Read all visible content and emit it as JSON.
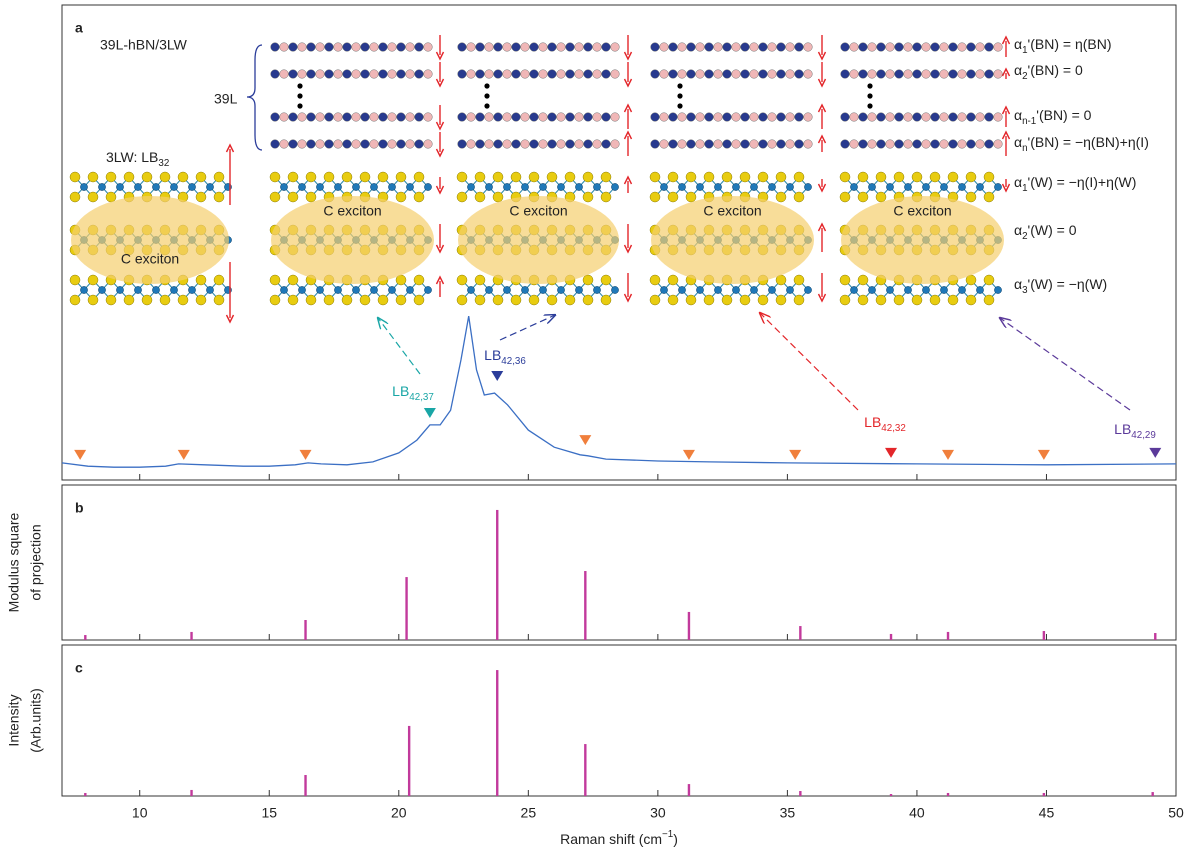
{
  "chart_data": [
    {
      "type": "line",
      "label": "a",
      "color": "#3b6fc4",
      "xlim": [
        7,
        50
      ],
      "ylim": [
        0,
        1
      ],
      "x": [
        7,
        8,
        9,
        10,
        11,
        11.5,
        12.5,
        14,
        15,
        16,
        16.5,
        17,
        18,
        19,
        20,
        20.7,
        21.2,
        21.6,
        22,
        22.4,
        22.7,
        23,
        23.3,
        23.7,
        24.2,
        25,
        26,
        27,
        27.3,
        28,
        30,
        32,
        35,
        40,
        45,
        50
      ],
      "values": [
        0.036,
        0.029,
        0.027,
        0.027,
        0.029,
        0.034,
        0.032,
        0.029,
        0.029,
        0.032,
        0.036,
        0.034,
        0.032,
        0.038,
        0.057,
        0.084,
        0.116,
        0.116,
        0.147,
        0.253,
        0.345,
        0.232,
        0.179,
        0.183,
        0.158,
        0.105,
        0.069,
        0.053,
        0.051,
        0.044,
        0.04,
        0.038,
        0.036,
        0.034,
        0.032,
        0.034
      ],
      "markers": [
        {
          "x": 7.7,
          "y": 0.053,
          "color": "#f07f3c"
        },
        {
          "x": 11.7,
          "y": 0.053,
          "color": "#f07f3c"
        },
        {
          "x": 16.4,
          "y": 0.053,
          "color": "#f07f3c"
        },
        {
          "x": 21.2,
          "y": 0.141,
          "color": "#19a6a6"
        },
        {
          "x": 23.8,
          "y": 0.219,
          "color": "#2b3d9a"
        },
        {
          "x": 27.2,
          "y": 0.084,
          "color": "#f07f3c"
        },
        {
          "x": 31.2,
          "y": 0.053,
          "color": "#f07f3c"
        },
        {
          "x": 35.3,
          "y": 0.053,
          "color": "#f07f3c"
        },
        {
          "x": 39.0,
          "y": 0.057,
          "color": "#e3262a"
        },
        {
          "x": 41.2,
          "y": 0.053,
          "color": "#f07f3c"
        },
        {
          "x": 44.9,
          "y": 0.053,
          "color": "#f07f3c"
        },
        {
          "x": 49.2,
          "y": 0.057,
          "color": "#5b3a9a"
        }
      ],
      "peak_labels": [
        {
          "text": [
            "LB",
            {
              "sub": "42,37"
            }
          ],
          "color": "#19a6a6"
        },
        {
          "text": [
            "LB",
            {
              "sub": "42,36"
            }
          ],
          "color": "#2b3d9a"
        },
        {
          "text": [
            "LB",
            {
              "sub": "42,32"
            }
          ],
          "color": "#e3262a"
        },
        {
          "text": [
            "LB",
            {
              "sub": "42,29"
            }
          ],
          "color": "#5b3a9a"
        }
      ]
    },
    {
      "type": "bar",
      "label": "b",
      "ylabel": [
        "Modulus square",
        "of projection"
      ],
      "color": "#c23a9c",
      "xlim": [
        7,
        50
      ],
      "ylim": [
        0,
        1
      ],
      "x": [
        7.9,
        12.0,
        16.4,
        20.3,
        23.8,
        27.2,
        31.2,
        35.5,
        39.0,
        41.2,
        44.9,
        49.2
      ],
      "values": [
        0.032,
        0.052,
        0.129,
        0.406,
        0.839,
        0.445,
        0.181,
        0.09,
        0.039,
        0.052,
        0.058,
        0.045
      ]
    },
    {
      "type": "bar",
      "label": "c",
      "ylabel": [
        "Intensity",
        "(Arb.units)"
      ],
      "color": "#c23a9c",
      "xlim": [
        7,
        50
      ],
      "ylim": [
        0,
        1
      ],
      "xlabel": [
        "Raman shift (cm",
        {
          "sup": "−1"
        },
        ")"
      ],
      "xticks": [
        10,
        15,
        20,
        25,
        30,
        35,
        40,
        45,
        50
      ],
      "x": [
        7.9,
        12.0,
        16.4,
        20.4,
        23.8,
        27.2,
        31.2,
        35.5,
        39.0,
        41.2,
        44.9,
        49.1
      ],
      "values": [
        0.02,
        0.04,
        0.139,
        0.464,
        0.834,
        0.344,
        0.079,
        0.033,
        0.013,
        0.02,
        0.02,
        0.026
      ]
    }
  ],
  "schematic": {
    "title": "39L-hBN/3LW",
    "stack_label": "39L",
    "column_label": [
      "3LW: LB",
      {
        "sub": "32"
      }
    ],
    "exciton_labels": [
      "C exciton",
      "C exciton",
      "C exciton",
      "C exciton",
      "C exciton"
    ],
    "layer_labels": [
      [
        "α",
        {
          "sub": "1"
        },
        "'(BN) = η(BN)"
      ],
      [
        "α",
        {
          "sub": "2"
        },
        "'(BN) = 0"
      ],
      [
        "α",
        {
          "sub": "n-1"
        },
        "'(BN) = 0"
      ],
      [
        "α",
        {
          "sub": "n"
        },
        "'(BN) = −η(BN)+η(I)"
      ],
      [
        "α",
        {
          "sub": "1"
        },
        "'(W) = −η(I)+η(W)"
      ],
      [
        "α",
        {
          "sub": "2"
        },
        "'(W) = 0"
      ],
      [
        "α",
        {
          "sub": "3"
        },
        "'(W) = −η(W)"
      ]
    ]
  }
}
